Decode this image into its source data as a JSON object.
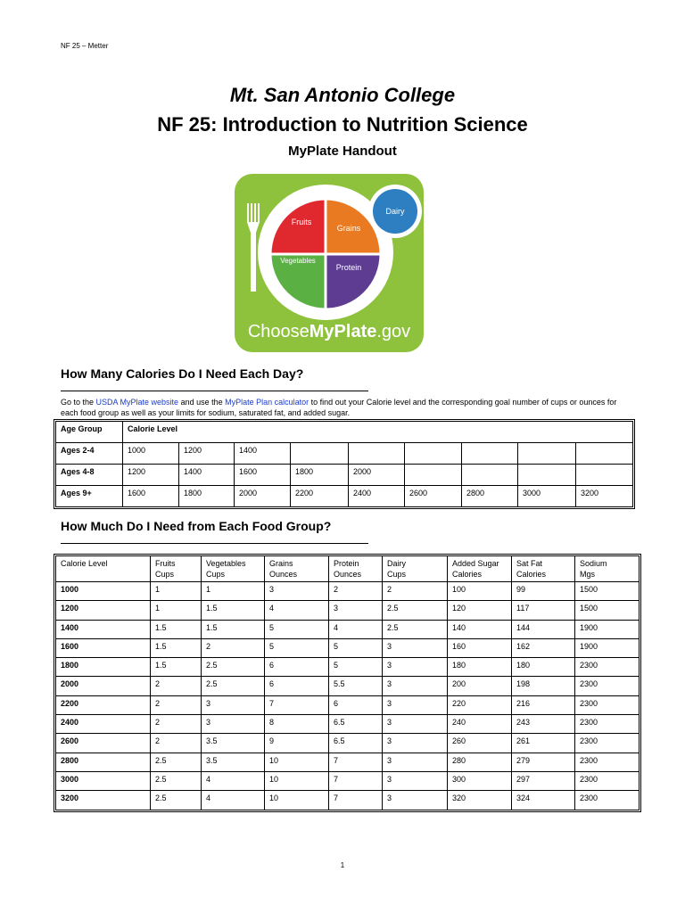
{
  "header": {
    "running_head": "NF 25 – Metter",
    "title": "Mt. San Antonio College",
    "course": "NF 25: Introduction to Nutrition Science",
    "subtitle": "MyPlate Handout"
  },
  "logo": {
    "fruits": "Fruits",
    "grains": "Grains",
    "dairy": "Dairy",
    "vegetables": "Vegetables",
    "protein": "Protein",
    "site": [
      "Choose",
      "MyPlate",
      ".gov"
    ]
  },
  "section1": {
    "heading": "How Many Calories Do I Need Each Day?",
    "intro": [
      "Go to the ",
      "USDA MyPlate website",
      " and use the ",
      "MyPlate Plan calculator",
      " to find out your Calorie level and the corresponding goal number of cups or ounces for each food group as well as your limits for sodium, saturated fat, and added sugar."
    ],
    "table": {
      "header": [
        "Age Group",
        "Calorie Level"
      ],
      "rows": [
        [
          "Ages 2-4",
          "1000",
          "1200",
          "1400"
        ],
        [
          "Ages 4-8",
          "1200",
          "1400",
          "1600",
          "1800",
          "2000"
        ],
        [
          "Ages 9+",
          "1600",
          "1800",
          "2000",
          "2200",
          "2400",
          "2600",
          "2800",
          "3000",
          "3200"
        ]
      ]
    }
  },
  "section2": {
    "heading": "How Much Do I Need from Each Food Group?",
    "table": {
      "header": [
        [
          "Calorie Level"
        ],
        [
          "Fruits",
          "Cups"
        ],
        [
          "Vegetables",
          "Cups"
        ],
        [
          "Grains",
          "Ounces"
        ],
        [
          "Protein",
          "Ounces"
        ],
        [
          "Dairy",
          "Cups"
        ],
        [
          "Added Sugar",
          "Calories"
        ],
        [
          "Sat Fat",
          "Calories"
        ],
        [
          "Sodium",
          "Mgs"
        ]
      ],
      "rows": [
        [
          "1000",
          "1",
          "1",
          "3",
          "2",
          "2",
          "100",
          "99",
          "1500"
        ],
        [
          "1200",
          "1",
          "1.5",
          "4",
          "3",
          "2.5",
          "120",
          "117",
          "1500"
        ],
        [
          "1400",
          "1.5",
          "1.5",
          "5",
          "4",
          "2.5",
          "140",
          "144",
          "1900"
        ],
        [
          "1600",
          "1.5",
          "2",
          "5",
          "5",
          "3",
          "160",
          "162",
          "1900"
        ],
        [
          "1800",
          "1.5",
          "2.5",
          "6",
          "5",
          "3",
          "180",
          "180",
          "2300"
        ],
        [
          "2000",
          "2",
          "2.5",
          "6",
          "5.5",
          "3",
          "200",
          "198",
          "2300"
        ],
        [
          "2200",
          "2",
          "3",
          "7",
          "6",
          "3",
          "220",
          "216",
          "2300"
        ],
        [
          "2400",
          "2",
          "3",
          "8",
          "6.5",
          "3",
          "240",
          "243",
          "2300"
        ],
        [
          "2600",
          "2",
          "3.5",
          "9",
          "6.5",
          "3",
          "260",
          "261",
          "2300"
        ],
        [
          "2800",
          "2.5",
          "3.5",
          "10",
          "7",
          "3",
          "280",
          "279",
          "2300"
        ],
        [
          "3000",
          "2.5",
          "4",
          "10",
          "7",
          "3",
          "300",
          "297",
          "2300"
        ],
        [
          "3200",
          "2.5",
          "4",
          "10",
          "7",
          "3",
          "320",
          "324",
          "2300"
        ]
      ]
    }
  },
  "footer": {
    "page": "1"
  }
}
